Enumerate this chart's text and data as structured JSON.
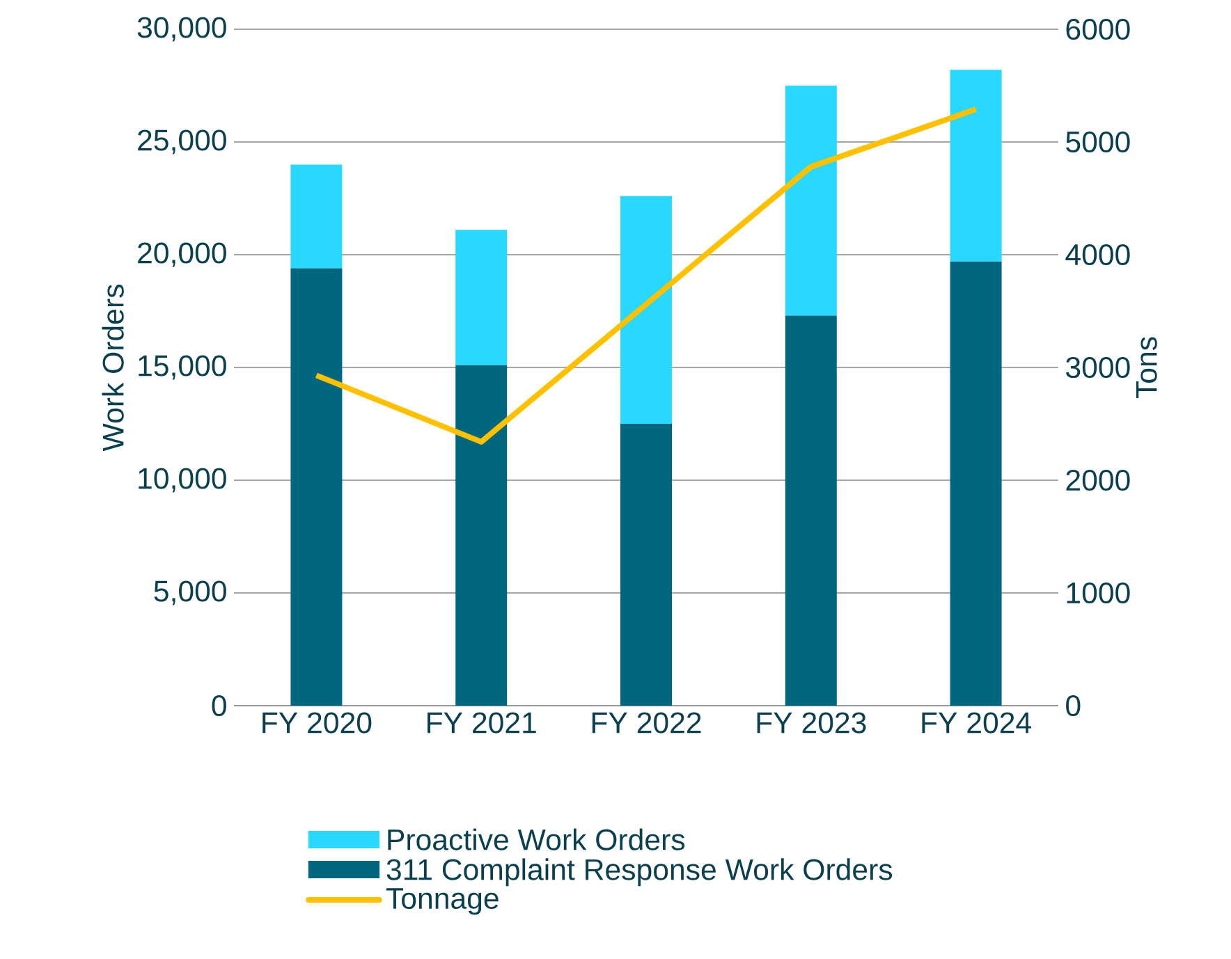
{
  "chart_data": {
    "type": "bar",
    "stacked": true,
    "categories": [
      "FY 2020",
      "FY 2021",
      "FY 2022",
      "FY 2023",
      "FY 2024"
    ],
    "series": [
      {
        "name": "311 Complaint Response Work Orders",
        "color": "#00677f",
        "values": [
          19400,
          15100,
          12500,
          17300,
          19700
        ]
      },
      {
        "name": "Proactive Work Orders",
        "color": "#2ad8ff",
        "values": [
          4600,
          6000,
          10100,
          10200,
          8500
        ]
      },
      {
        "name": "Tonnage",
        "type": "line",
        "axis": "y2",
        "color": "#ffc000",
        "values": [
          2930,
          2340,
          3560,
          4780,
          5290
        ]
      }
    ],
    "ylabel": "Work Orders",
    "y2label": "Tons",
    "ylim": [
      0,
      30000
    ],
    "yticks": [
      0,
      {
        "value": 5000,
        "label": "5,000"
      },
      {
        "value": 10000,
        "label": "10,000"
      },
      {
        "value": 15000,
        "label": "15,000"
      },
      {
        "value": 20000,
        "label": "20,000"
      },
      {
        "value": 25000,
        "label": "25,000"
      },
      {
        "value": 30000,
        "label": "30,000"
      }
    ],
    "y2lim": [
      0,
      6000
    ],
    "y2ticks": [
      0,
      1000,
      2000,
      3000,
      4000,
      5000,
      6000
    ],
    "grid": "y",
    "legend": "bottom"
  }
}
